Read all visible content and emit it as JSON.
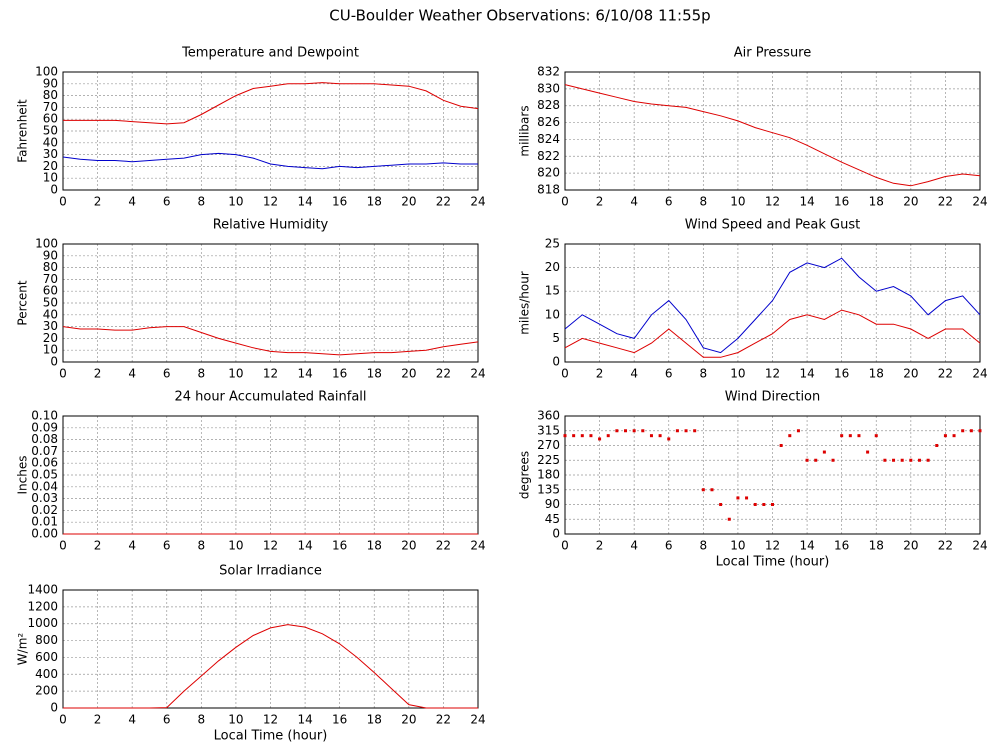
{
  "title": "CU-Boulder Weather Observations: 6/10/08 11:55p",
  "chart_data": [
    {
      "type": "line",
      "title": "Temperature and Dewpoint",
      "ylabel": "Fahrenheit",
      "x": [
        0,
        1,
        2,
        3,
        4,
        5,
        6,
        7,
        8,
        9,
        10,
        11,
        12,
        13,
        14,
        15,
        16,
        17,
        18,
        19,
        20,
        21,
        22,
        23,
        24
      ],
      "series": [
        {
          "color": "#dd0000",
          "values": [
            59,
            59,
            59,
            59,
            58,
            57,
            56,
            57,
            64,
            72,
            80,
            86,
            88,
            90,
            90,
            91,
            90,
            90,
            90,
            89,
            88,
            84,
            76,
            71,
            69
          ]
        },
        {
          "color": "#0000cc",
          "values": [
            28,
            26,
            25,
            25,
            24,
            25,
            26,
            27,
            30,
            31,
            30,
            27,
            22,
            20,
            19,
            18,
            20,
            19,
            20,
            21,
            22,
            22,
            23,
            22,
            22
          ]
        }
      ],
      "xlim": [
        0,
        24
      ],
      "xticks": [
        0,
        2,
        4,
        6,
        8,
        10,
        12,
        14,
        16,
        18,
        20,
        22,
        24
      ],
      "ylim": [
        0,
        100
      ],
      "yticks": [
        0,
        10,
        20,
        30,
        40,
        50,
        60,
        70,
        80,
        90,
        100
      ],
      "grid": true
    },
    {
      "type": "line",
      "title": "Air Pressure",
      "ylabel": "millibars",
      "x": [
        0,
        1,
        2,
        3,
        4,
        5,
        6,
        7,
        8,
        9,
        10,
        11,
        12,
        13,
        14,
        15,
        16,
        17,
        18,
        19,
        20,
        21,
        22,
        23,
        24
      ],
      "series": [
        {
          "color": "#dd0000",
          "values": [
            830.5,
            830,
            829.5,
            829,
            828.5,
            828.2,
            828,
            827.8,
            827.3,
            826.8,
            826.2,
            825.4,
            824.8,
            824.2,
            823.3,
            822.3,
            821.3,
            820.4,
            819.5,
            818.8,
            818.5,
            819,
            819.6,
            819.9,
            819.7
          ]
        }
      ],
      "xlim": [
        0,
        24
      ],
      "xticks": [
        0,
        2,
        4,
        6,
        8,
        10,
        12,
        14,
        16,
        18,
        20,
        22,
        24
      ],
      "ylim": [
        818,
        832
      ],
      "yticks": [
        818,
        820,
        822,
        824,
        826,
        828,
        830,
        832
      ],
      "grid": true
    },
    {
      "type": "line",
      "title": "Relative Humidity",
      "ylabel": "Percent",
      "x": [
        0,
        1,
        2,
        3,
        4,
        5,
        6,
        7,
        8,
        9,
        10,
        11,
        12,
        13,
        14,
        15,
        16,
        17,
        18,
        19,
        20,
        21,
        22,
        23,
        24
      ],
      "series": [
        {
          "color": "#dd0000",
          "values": [
            30,
            28,
            28,
            27,
            27,
            29,
            30,
            30,
            25,
            20,
            16,
            12,
            9,
            8,
            8,
            7,
            6,
            7,
            8,
            8,
            9,
            10,
            13,
            15,
            17
          ]
        }
      ],
      "xlim": [
        0,
        24
      ],
      "xticks": [
        0,
        2,
        4,
        6,
        8,
        10,
        12,
        14,
        16,
        18,
        20,
        22,
        24
      ],
      "ylim": [
        0,
        100
      ],
      "yticks": [
        0,
        10,
        20,
        30,
        40,
        50,
        60,
        70,
        80,
        90,
        100
      ],
      "grid": true
    },
    {
      "type": "line",
      "title": "Wind Speed and Peak Gust",
      "ylabel": "miles/hour",
      "x": [
        0,
        1,
        2,
        3,
        4,
        5,
        6,
        7,
        8,
        9,
        10,
        11,
        12,
        13,
        14,
        15,
        16,
        17,
        18,
        19,
        20,
        21,
        22,
        23,
        24
      ],
      "series": [
        {
          "color": "#0000cc",
          "values": [
            7,
            10,
            8,
            6,
            5,
            10,
            13,
            9,
            3,
            2,
            5,
            9,
            13,
            19,
            21,
            20,
            22,
            18,
            15,
            16,
            14,
            10,
            13,
            14,
            10
          ]
        },
        {
          "color": "#dd0000",
          "values": [
            3,
            5,
            4,
            3,
            2,
            4,
            7,
            4,
            1,
            1,
            2,
            4,
            6,
            9,
            10,
            9,
            11,
            10,
            8,
            8,
            7,
            5,
            7,
            7,
            4
          ]
        }
      ],
      "xlim": [
        0,
        24
      ],
      "xticks": [
        0,
        2,
        4,
        6,
        8,
        10,
        12,
        14,
        16,
        18,
        20,
        22,
        24
      ],
      "ylim": [
        0,
        25
      ],
      "yticks": [
        0,
        5,
        10,
        15,
        20,
        25
      ],
      "grid": true
    },
    {
      "type": "line",
      "title": "24 hour Accumulated Rainfall",
      "ylabel": "Inches",
      "x": [
        0,
        1,
        2,
        3,
        4,
        5,
        6,
        7,
        8,
        9,
        10,
        11,
        12,
        13,
        14,
        15,
        16,
        17,
        18,
        19,
        20,
        21,
        22,
        23,
        24
      ],
      "series": [
        {
          "color": "#dd0000",
          "values": [
            0,
            0,
            0,
            0,
            0,
            0,
            0,
            0,
            0,
            0,
            0,
            0,
            0,
            0,
            0,
            0,
            0,
            0,
            0,
            0,
            0,
            0,
            0,
            0,
            0
          ]
        }
      ],
      "xlim": [
        0,
        24
      ],
      "xticks": [
        0,
        2,
        4,
        6,
        8,
        10,
        12,
        14,
        16,
        18,
        20,
        22,
        24
      ],
      "ylim": [
        0,
        0.1
      ],
      "yticks": [
        {
          "value": 0,
          "label": "0.00"
        },
        {
          "value": 0.01,
          "label": "0.01"
        },
        {
          "value": 0.02,
          "label": "0.02"
        },
        {
          "value": 0.03,
          "label": "0.03"
        },
        {
          "value": 0.04,
          "label": "0.04"
        },
        {
          "value": 0.05,
          "label": "0.05"
        },
        {
          "value": 0.06,
          "label": "0.06"
        },
        {
          "value": 0.07,
          "label": "0.07"
        },
        {
          "value": 0.08,
          "label": "0.08"
        },
        {
          "value": 0.09,
          "label": "0.09"
        },
        {
          "value": 0.1,
          "label": "0.10"
        }
      ],
      "grid": true
    },
    {
      "type": "scatter",
      "title": "Wind Direction",
      "ylabel": "degrees",
      "xlabel": "Local Time (hour)",
      "x": [
        0,
        0.5,
        1,
        1.5,
        2,
        2.5,
        3,
        3.5,
        4,
        4.5,
        5,
        5.5,
        6,
        6.5,
        7,
        7.5,
        8,
        8.5,
        9,
        9.5,
        10,
        10.5,
        11,
        11.5,
        12,
        12.5,
        13,
        13.5,
        14,
        14.5,
        15,
        15.5,
        16,
        16.5,
        17,
        17.5,
        18,
        18.5,
        19,
        19.5,
        20,
        20.5,
        21,
        21.5,
        22,
        22.5,
        23,
        23.5,
        24
      ],
      "series": [
        {
          "color": "#dd0000",
          "values": [
            300,
            300,
            300,
            300,
            290,
            300,
            315,
            315,
            315,
            315,
            300,
            300,
            290,
            315,
            315,
            315,
            135,
            135,
            90,
            45,
            110,
            110,
            90,
            90,
            90,
            270,
            300,
            315,
            225,
            225,
            250,
            225,
            300,
            300,
            300,
            250,
            300,
            225,
            225,
            225,
            225,
            225,
            225,
            270,
            300,
            300,
            315,
            315,
            315
          ]
        }
      ],
      "xlim": [
        0,
        24
      ],
      "xticks": [
        0,
        2,
        4,
        6,
        8,
        10,
        12,
        14,
        16,
        18,
        20,
        22,
        24
      ],
      "ylim": [
        0,
        360
      ],
      "yticks": [
        0,
        45,
        90,
        135,
        180,
        225,
        270,
        315,
        360
      ],
      "grid": true
    },
    {
      "type": "line",
      "title": "Solar Irradiance",
      "ylabel": "W/m²",
      "xlabel": "Local Time (hour)",
      "x": [
        0,
        1,
        2,
        3,
        4,
        5,
        6,
        7,
        8,
        9,
        10,
        11,
        12,
        13,
        14,
        15,
        16,
        17,
        18,
        19,
        20,
        21,
        22,
        23,
        24
      ],
      "series": [
        {
          "color": "#dd0000",
          "values": [
            0,
            0,
            0,
            0,
            0,
            0,
            5,
            200,
            380,
            560,
            720,
            860,
            950,
            990,
            960,
            880,
            760,
            600,
            420,
            230,
            40,
            0,
            0,
            0,
            0
          ]
        }
      ],
      "xlim": [
        0,
        24
      ],
      "xticks": [
        0,
        2,
        4,
        6,
        8,
        10,
        12,
        14,
        16,
        18,
        20,
        22,
        24
      ],
      "ylim": [
        0,
        1400
      ],
      "yticks": [
        0,
        200,
        400,
        600,
        800,
        1000,
        1200,
        1400
      ],
      "grid": true
    }
  ]
}
